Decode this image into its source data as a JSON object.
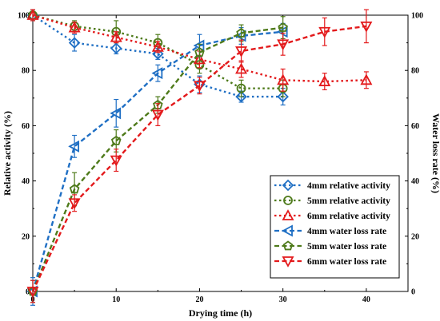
{
  "chart_data": {
    "type": "line",
    "xlabel": "Drying time (h)",
    "ylabel_left": "Relative activity (%)",
    "ylabel_right": "Water loss rate (%)",
    "xlim": [
      0,
      45
    ],
    "ylim_left": [
      0,
      100
    ],
    "ylim_right": [
      0,
      100
    ],
    "x_ticks": [
      0,
      10,
      20,
      30,
      40
    ],
    "y_ticks_left": [
      0,
      20,
      40,
      60,
      80,
      100
    ],
    "y_ticks_right": [
      0,
      20,
      40,
      60,
      80,
      100
    ],
    "legend_position": "bottom-right",
    "series": [
      {
        "name": "4mm relative activity",
        "axis": "left",
        "color": "#1f6fc4",
        "marker": "diamond",
        "dash": "dotted",
        "x": [
          0,
          5,
          10,
          15,
          20,
          25,
          30
        ],
        "y": [
          100,
          90,
          88,
          86,
          75,
          70.5,
          70.5
        ],
        "err": [
          2,
          3,
          2,
          2,
          3,
          2,
          3
        ]
      },
      {
        "name": "5mm relative activity",
        "axis": "left",
        "color": "#4e7a1a",
        "marker": "circle",
        "dash": "dotted",
        "x": [
          0,
          5,
          10,
          15,
          20,
          25,
          30
        ],
        "y": [
          100,
          96,
          94,
          90,
          82,
          73.5,
          73.5
        ],
        "err": [
          2,
          2,
          4,
          3,
          3,
          3,
          3
        ]
      },
      {
        "name": "6mm relative activity",
        "axis": "left",
        "color": "#e31a1c",
        "marker": "triangle-up",
        "dash": "dotted",
        "x": [
          0,
          5,
          10,
          15,
          20,
          25,
          30,
          35,
          40
        ],
        "y": [
          100,
          95.5,
          92,
          88.5,
          84,
          80.5,
          76.5,
          76,
          76.5
        ],
        "err": [
          2,
          2,
          2,
          2,
          3,
          3,
          4,
          3,
          3
        ]
      },
      {
        "name": "4mm water loss rate",
        "axis": "right",
        "color": "#1f6fc4",
        "marker": "triangle-left",
        "dash": "dashed",
        "x": [
          0,
          5,
          10,
          15,
          20,
          25,
          30
        ],
        "y": [
          0,
          52.5,
          64.5,
          79,
          89,
          92.5,
          94
        ],
        "err": [
          5,
          4,
          5,
          3,
          4,
          3,
          3
        ]
      },
      {
        "name": "5mm water loss rate",
        "axis": "right",
        "color": "#4e7a1a",
        "marker": "pentagon",
        "dash": "dashed",
        "x": [
          0,
          5,
          10,
          15,
          20,
          25,
          30
        ],
        "y": [
          0,
          37,
          54.5,
          67.5,
          86.5,
          93.5,
          95.5
        ],
        "err": [
          4,
          6,
          4,
          3,
          3,
          3,
          4
        ]
      },
      {
        "name": "6mm water loss rate",
        "axis": "right",
        "color": "#e31a1c",
        "marker": "triangle-down",
        "dash": "dashed",
        "x": [
          0,
          5,
          10,
          15,
          20,
          25,
          30,
          35,
          40
        ],
        "y": [
          0,
          32,
          47.5,
          64,
          74.5,
          87,
          89.5,
          94,
          96
        ],
        "err": [
          4,
          3,
          4,
          4,
          3,
          4,
          4,
          5,
          6
        ]
      }
    ]
  }
}
